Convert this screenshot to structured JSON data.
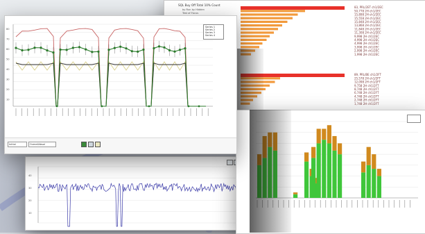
{
  "top_right_chart": {
    "title": "SQL Buy Off  Total 10% Count",
    "subtitle": "by Run by Hidden",
    "subtitle2": "Test of Focus",
    "bars_group1": [
      100,
      62,
      55,
      50,
      45,
      40,
      36,
      32,
      28,
      25,
      21,
      18,
      14,
      10
    ],
    "bars_group2": [
      100,
      38,
      33,
      28,
      24,
      20,
      16,
      12,
      9
    ],
    "labels_group1": [
      "83, PRL/2ET ch1/2EC",
      "50,778 2H ch1/2EC",
      "15,898 2H ch1/2EC",
      "15,558 2H ch1/2EC",
      "15,848 2H ch1/2EC",
      "13,868 2H ch1/2EC",
      "11,848 2H ch1/2EC",
      "11,308 2H ch1/2EC",
      "9,998 2H ch1/2EC",
      "4,998 2H ch1/2EC",
      "4,998 2H ch1/2EC",
      "3,998 2H ch1/2EC",
      "2,998 2H ch1/2EC",
      "1,998 2H ch1/2EC"
    ],
    "labels_group2": [
      "89, PRL/BE ch1/2FT",
      "25,578 2H ch1/2FT",
      "12,098 2H ch1/2FT",
      "9,758 2H ch1/2FT",
      "8,748 2H ch1/2FT",
      "6,748 2H ch1/2FT",
      "4,748 2H ch1/2FT",
      "2,748 2H ch1/2FT",
      "1,748 2H ch1/2FT"
    ],
    "colors": {
      "top": "#e8312a",
      "rest": "#f29a3c"
    }
  },
  "main_window": {
    "legend": [
      "Series 1",
      "Series 2",
      "Series 3",
      "Series 4"
    ],
    "footer_from": "Initial",
    "footer_to": "OverallAbsol",
    "y_ticks": [
      "80",
      "70",
      "60",
      "50",
      "40",
      "30",
      "20",
      "10"
    ],
    "colors": {
      "line_green": "#2a7a2a",
      "line_red": "#c86464",
      "line_tan": "#d8cf8a",
      "line_black": "#333333"
    }
  },
  "bottom_left_window": {
    "y_ticks": [
      "40",
      "30",
      "20",
      "10"
    ],
    "color": "#3a3aa8"
  },
  "bottom_right_chart": {
    "groups": [
      {
        "green": [
          18,
          22,
          28,
          26
        ],
        "orange": [
          6,
          12,
          8,
          10
        ]
      },
      {
        "green": [
          2
        ],
        "orange": [
          1
        ]
      },
      {
        "green": [
          20,
          12,
          8
        ],
        "orange": [
          5,
          4,
          3
        ]
      },
      {
        "green": [
          22,
          30,
          32,
          30,
          26,
          24
        ],
        "orange": [
          6,
          8,
          6,
          10,
          8,
          6
        ]
      },
      {
        "green": [
          14,
          18,
          16,
          12
        ],
        "orange": [
          6,
          10,
          8,
          4
        ]
      }
    ],
    "colors": {
      "green": "#3fc63a",
      "orange": "#d18a1e"
    }
  }
}
